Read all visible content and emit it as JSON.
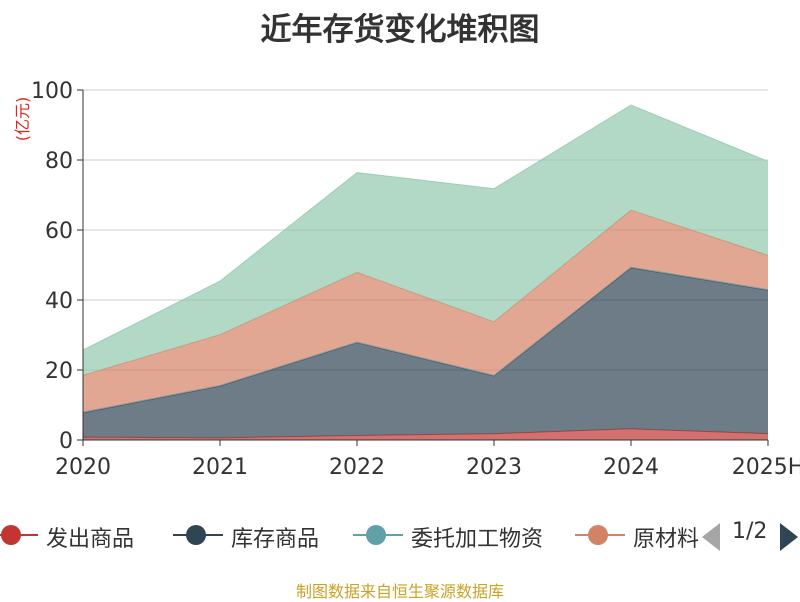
{
  "title": "近年存货变化堆积图",
  "unit_label": "(亿元)",
  "source": "制图数据来自恒生聚源数据库",
  "legend": {
    "page_indicator": "1/2"
  },
  "chart_data": {
    "type": "area",
    "stacked": true,
    "categories": [
      "2020",
      "2021",
      "2022",
      "2023",
      "2024",
      "2025H"
    ],
    "ylim": [
      0,
      100
    ],
    "y_ticks": [
      "0",
      "20",
      "40",
      "60",
      "80",
      "100"
    ],
    "ylabel": "(亿元)",
    "grid": true,
    "legend_position": "bottom",
    "series": [
      {
        "name": "发出商品",
        "color": "#c23531",
        "values": [
          0.8,
          0.6,
          1.3,
          1.8,
          3.2,
          1.8
        ]
      },
      {
        "name": "库存商品",
        "color": "#2f4554",
        "values": [
          7.0,
          14.8,
          26.5,
          16.5,
          46.0,
          41.0
        ]
      },
      {
        "name": "委托加工物资",
        "color": "#61a0a8",
        "values": [
          0.2,
          0.2,
          0.2,
          0.2,
          0.2,
          0.2
        ]
      },
      {
        "name": "原材料",
        "color": "#d48265",
        "values": [
          10.5,
          14.5,
          19.9,
          15.3,
          16.3,
          9.8
        ]
      },
      {
        "name": "",
        "color": "#91c7ae",
        "values": [
          7.2,
          15.3,
          28.5,
          38.0,
          30.0,
          26.8
        ]
      }
    ]
  }
}
